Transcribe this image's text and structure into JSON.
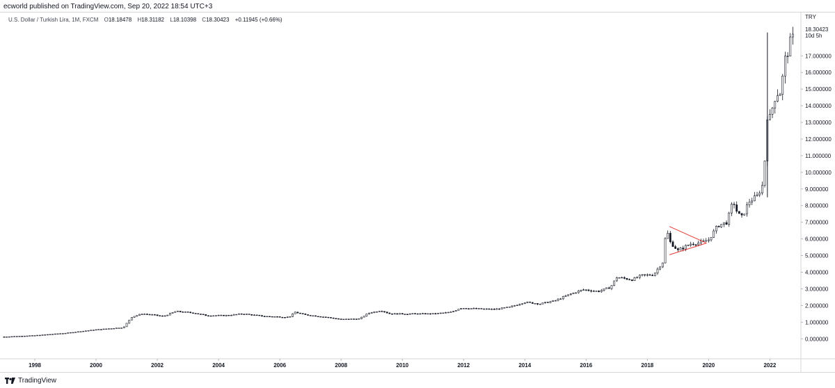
{
  "header": {
    "publish_text": "ecworld published on TradingView.com, Sep 20, 2022 18:54 UTC+3"
  },
  "legend": {
    "symbol": "U.S. Dollar / Turkish Lira, 1M, FXCM",
    "open_label": "O",
    "open": "18.18478",
    "high_label": "H",
    "high": "18.31182",
    "low_label": "L",
    "low": "18.10398",
    "close_label": "C",
    "close": "18.30423",
    "change": "+0.11945 (+0.66%)"
  },
  "price_axis": {
    "currency": "TRY",
    "last_price": "18.30423",
    "countdown": "10d 5h"
  },
  "footer": {
    "brand": "TradingView"
  },
  "colors": {
    "candle": "#131722",
    "triangle": "#e53935",
    "axis_text": "#131722",
    "grid": "#e0e3eb"
  },
  "chart_data": {
    "type": "candlestick",
    "interval": "1M",
    "ylim": [
      -1.2,
      19.6
    ],
    "y_ticks": [
      0,
      1,
      2,
      3,
      4,
      5,
      6,
      7,
      8,
      9,
      10,
      11,
      12,
      13,
      14,
      15,
      16,
      17
    ],
    "y_tick_labels": [
      "0.000000",
      "1.000000",
      "2.000000",
      "3.000000",
      "4.000000",
      "5.000000",
      "6.000000",
      "7.000000",
      "8.000000",
      "9.000000",
      "10.000000",
      "11.000000",
      "12.000000",
      "13.000000",
      "14.000000",
      "15.000000",
      "16.000000",
      "17.000000"
    ],
    "x_ticks": [
      1998,
      2000,
      2002,
      2004,
      2006,
      2008,
      2010,
      2012,
      2014,
      2016,
      2018,
      2020,
      2022
    ],
    "xlim": [
      1997.0,
      2022.9
    ],
    "price_path": [
      [
        1997.0,
        0.12
      ],
      [
        1998.0,
        0.2
      ],
      [
        1999.0,
        0.34
      ],
      [
        2000.0,
        0.55
      ],
      [
        2000.9,
        0.68
      ],
      [
        2001.15,
        1.3
      ],
      [
        2001.5,
        1.5
      ],
      [
        2001.8,
        1.45
      ],
      [
        2002.2,
        1.35
      ],
      [
        2002.6,
        1.65
      ],
      [
        2003.2,
        1.55
      ],
      [
        2003.6,
        1.4
      ],
      [
        2004.2,
        1.4
      ],
      [
        2004.8,
        1.5
      ],
      [
        2005.5,
        1.35
      ],
      [
        2006.3,
        1.3
      ],
      [
        2006.5,
        1.6
      ],
      [
        2006.8,
        1.45
      ],
      [
        2007.5,
        1.3
      ],
      [
        2008.0,
        1.17
      ],
      [
        2008.6,
        1.2
      ],
      [
        2008.9,
        1.55
      ],
      [
        2009.3,
        1.7
      ],
      [
        2009.6,
        1.5
      ],
      [
        2010.5,
        1.5
      ],
      [
        2011.0,
        1.5
      ],
      [
        2011.6,
        1.6
      ],
      [
        2011.9,
        1.85
      ],
      [
        2012.5,
        1.8
      ],
      [
        2013.0,
        1.77
      ],
      [
        2013.5,
        1.9
      ],
      [
        2014.0,
        2.2
      ],
      [
        2014.5,
        2.1
      ],
      [
        2015.0,
        2.3
      ],
      [
        2015.5,
        2.7
      ],
      [
        2015.9,
        2.95
      ],
      [
        2016.4,
        2.85
      ],
      [
        2016.8,
        3.1
      ],
      [
        2017.0,
        3.7
      ],
      [
        2017.5,
        3.55
      ],
      [
        2017.8,
        3.8
      ],
      [
        2018.2,
        3.85
      ],
      [
        2018.5,
        4.6
      ],
      [
        2018.62,
        6.6
      ],
      [
        2018.75,
        5.8
      ],
      [
        2019.0,
        5.3
      ],
      [
        2019.4,
        5.7
      ],
      [
        2019.8,
        5.8
      ],
      [
        2020.0,
        5.95
      ],
      [
        2020.3,
        6.8
      ],
      [
        2020.6,
        7.0
      ],
      [
        2020.8,
        8.3
      ],
      [
        2020.95,
        7.5
      ],
      [
        2021.1,
        7.3
      ],
      [
        2021.3,
        8.2
      ],
      [
        2021.6,
        8.6
      ],
      [
        2021.8,
        9.4
      ],
      [
        2021.9,
        13.4
      ],
      [
        2022.0,
        13.3
      ],
      [
        2022.2,
        14.7
      ],
      [
        2022.35,
        14.8
      ],
      [
        2022.5,
        16.8
      ],
      [
        2022.6,
        17.3
      ],
      [
        2022.7,
        18.1
      ],
      [
        2022.78,
        18.3
      ]
    ],
    "spike": {
      "x": 2021.92,
      "high": 18.4,
      "low": 8.5
    },
    "last_close": 18.30423
  },
  "annotations": {
    "symmetrical_triangle": {
      "upper_line": [
        [
          2018.72,
          6.75
        ],
        [
          2019.93,
          5.75
        ]
      ],
      "lower_line": [
        [
          2018.72,
          5.05
        ],
        [
          2019.93,
          5.75
        ]
      ]
    }
  }
}
